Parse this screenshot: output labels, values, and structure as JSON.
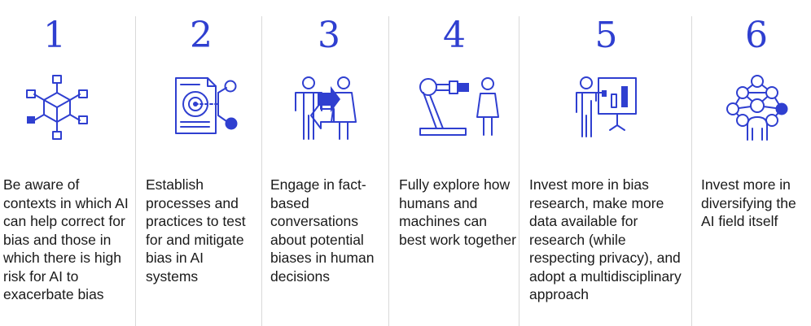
{
  "steps": [
    {
      "number": "1",
      "icon": "network-cube-icon",
      "text": "Be aware of contexts in which AI can help correct for bias and those in which there is high risk for AI to exacerbate bias"
    },
    {
      "number": "2",
      "icon": "document-target-icon",
      "text": "Establish processes and practices to test for and mitigate bias in AI systems"
    },
    {
      "number": "3",
      "icon": "people-conversation-icon",
      "text": "Engage in fact-based conversations about potential biases in human decisions"
    },
    {
      "number": "4",
      "icon": "robot-arm-human-icon",
      "text": "Fully explore how humans and machines can best work together"
    },
    {
      "number": "5",
      "icon": "presenter-chart-icon",
      "text": "Invest more in bias research, make more data available for research (while respecting privacy), and adopt a multidisciplinary approach"
    },
    {
      "number": "6",
      "icon": "person-network-icon",
      "text": "Invest more in diversifying the AI field itself"
    }
  ],
  "colors": {
    "accent": "#2f3fd0",
    "text": "#1a1a1a",
    "divider": "#d9d9d9"
  }
}
